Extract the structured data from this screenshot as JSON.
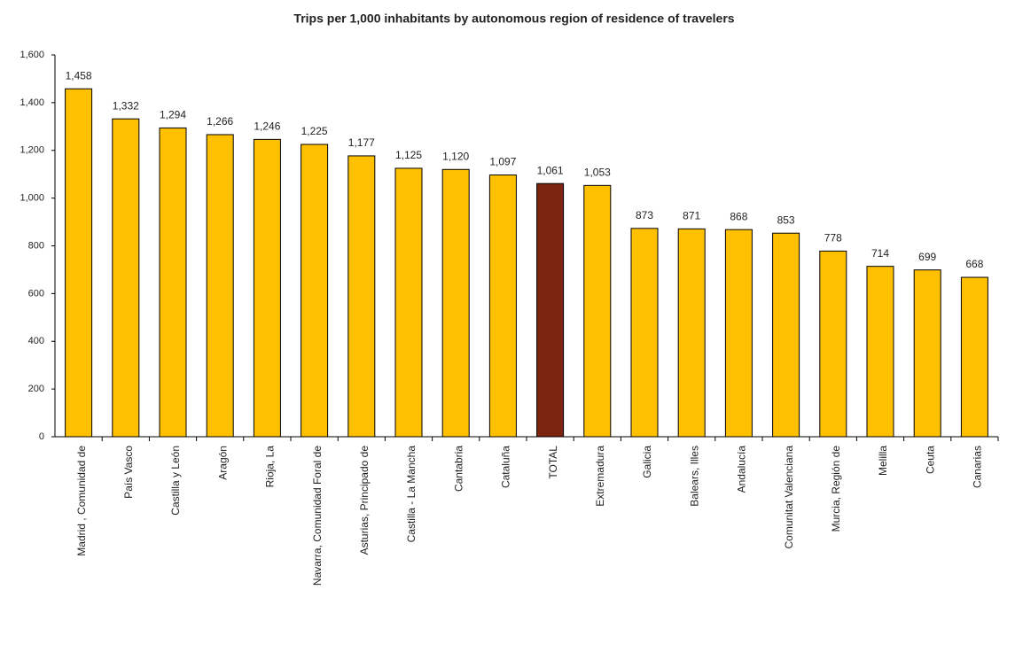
{
  "chart_data": {
    "type": "bar",
    "title": "Trips per 1,000 inhabitants by autonomous region of residence of travelers",
    "categories": [
      "Madrid , Comunidad de",
      "País Vasco",
      "Castilla y León",
      "Aragón",
      "Rioja, La",
      "Navarra, Comunidad Foral de",
      "Asturias, Principado de",
      "Castilla - La Mancha",
      "Cantabria",
      "Cataluña",
      "TOTAL",
      "Extremadura",
      "Galicia",
      "Balears, Illes",
      "Andalucía",
      "Comunitat Valenciana",
      "Murcia, Región de",
      "Melilla",
      "Ceuta",
      "Canarias"
    ],
    "values": [
      1458,
      1332,
      1294,
      1266,
      1246,
      1225,
      1177,
      1125,
      1120,
      1097,
      1061,
      1053,
      873,
      871,
      868,
      853,
      778,
      714,
      699,
      668
    ],
    "value_labels": [
      "1,458",
      "1,332",
      "1,294",
      "1,266",
      "1,246",
      "1,225",
      "1,177",
      "1,125",
      "1,120",
      "1,097",
      "1,061",
      "1,053",
      "873",
      "871",
      "868",
      "853",
      "778",
      "714",
      "699",
      "668"
    ],
    "colors": [
      "#ffc000",
      "#ffc000",
      "#ffc000",
      "#ffc000",
      "#ffc000",
      "#ffc000",
      "#ffc000",
      "#ffc000",
      "#ffc000",
      "#ffc000",
      "#7b2510",
      "#ffc000",
      "#ffc000",
      "#ffc000",
      "#ffc000",
      "#ffc000",
      "#ffc000",
      "#ffc000",
      "#ffc000",
      "#ffc000"
    ],
    "ylim": [
      0,
      1600
    ],
    "yticks": [
      0,
      200,
      400,
      600,
      800,
      {
        "value": 1000,
        "label": "1,000"
      },
      {
        "value": 1200,
        "label": "1,200"
      },
      {
        "value": 1400,
        "label": "1,400"
      },
      {
        "value": 1600,
        "label": "1,600"
      }
    ]
  }
}
